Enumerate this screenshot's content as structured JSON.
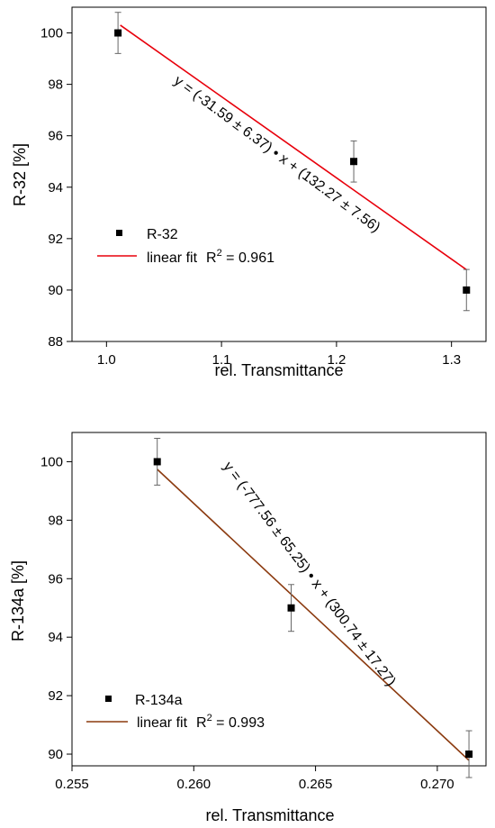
{
  "chart_data": [
    {
      "type": "scatter",
      "xlabel": "rel. Transmittance",
      "ylabel": "R-32 [%]",
      "xlim": [
        0.97,
        1.33
      ],
      "ylim": [
        88,
        101
      ],
      "xticks": [
        "1.0",
        "1.1",
        "1.2",
        "1.3"
      ],
      "xtick_values": [
        1.0,
        1.1,
        1.2,
        1.3
      ],
      "yticks": [
        "88",
        "90",
        "92",
        "94",
        "96",
        "98",
        "100"
      ],
      "ytick_values": [
        88,
        90,
        92,
        94,
        96,
        98,
        100
      ],
      "series": [
        {
          "name": "R-32",
          "points": [
            {
              "x": 1.01,
              "y": 100,
              "err": 0.8
            },
            {
              "x": 1.215,
              "y": 95,
              "err": 0.8
            },
            {
              "x": 1.313,
              "y": 90,
              "err": 0.8
            }
          ]
        }
      ],
      "fit": {
        "label": "linear fit",
        "r2_prefix": "R",
        "r2_sup": "2",
        "r2_value": " = 0.961",
        "slope": -31.59,
        "intercept": 132.27,
        "x_range": [
          1.012,
          1.313
        ],
        "color": "#e8000b",
        "equation": "y = (-31.59 ± 6.37) • x + (132.27 ± 7.56)"
      }
    },
    {
      "type": "scatter",
      "xlabel": "rel. Transmittance",
      "ylabel": "R-134a [%]",
      "xlim": [
        0.255,
        0.272
      ],
      "ylim": [
        89.6,
        101
      ],
      "xticks": [
        "0.255",
        "0.260",
        "0.265",
        "0.270"
      ],
      "xtick_values": [
        0.255,
        0.26,
        0.265,
        0.27
      ],
      "yticks": [
        "90",
        "92",
        "94",
        "96",
        "98",
        "100"
      ],
      "ytick_values": [
        90,
        92,
        94,
        96,
        98,
        100
      ],
      "series": [
        {
          "name": "R-134a",
          "points": [
            {
              "x": 0.2585,
              "y": 100,
              "err": 0.8
            },
            {
              "x": 0.264,
              "y": 95,
              "err": 0.8
            },
            {
              "x": 0.2713,
              "y": 90,
              "err": 0.8
            }
          ]
        }
      ],
      "fit": {
        "label": "linear fit",
        "r2_prefix": "R",
        "r2_sup": "2",
        "r2_value": " = 0.993",
        "slope": -777.56,
        "intercept": 300.74,
        "x_range": [
          0.2585,
          0.2713
        ],
        "color": "#8b3a0f",
        "equation": "y = (-777.56 ± 65.25) • x + (300.74 ± 17.27)"
      }
    }
  ]
}
